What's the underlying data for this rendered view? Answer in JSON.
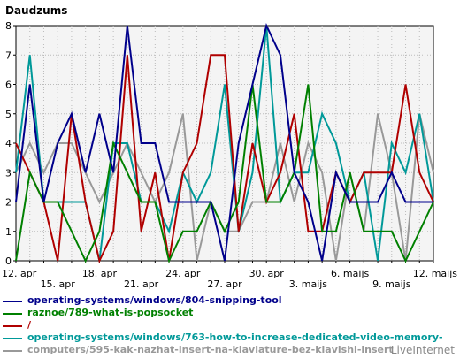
{
  "watermark": "LiveInternet",
  "chart_data": {
    "type": "line",
    "title": "Daudzums",
    "grid": true,
    "ylim": [
      0,
      8
    ],
    "yticks": [
      "0",
      "1",
      "2",
      "3",
      "4",
      "5",
      "6",
      "7",
      "8"
    ],
    "x_labels_top_row": [
      {
        "index": 0,
        "label": "12. apr"
      },
      {
        "index": 6,
        "label": "18. apr"
      },
      {
        "index": 12,
        "label": "24. apr"
      },
      {
        "index": 18,
        "label": "30. apr"
      },
      {
        "index": 24,
        "label": "6. maijs"
      },
      {
        "index": 30,
        "label": "12. maijs"
      }
    ],
    "x_labels_bottom_row": [
      {
        "index": 3,
        "label": "15. apr"
      },
      {
        "index": 9,
        "label": "21. apr"
      },
      {
        "index": 15,
        "label": "27. apr"
      },
      {
        "index": 21,
        "label": "3. maijs"
      },
      {
        "index": 27,
        "label": "9. maijs"
      }
    ],
    "x": [
      "12. apr",
      "13. apr",
      "14. apr",
      "15. apr",
      "16. apr",
      "17. apr",
      "18. apr",
      "19. apr",
      "20. apr",
      "21. apr",
      "22. apr",
      "23. apr",
      "24. apr",
      "25. apr",
      "26. apr",
      "27. apr",
      "28. apr",
      "29. apr",
      "30. apr",
      "1. maijs",
      "2. maijs",
      "3. maijs",
      "4. maijs",
      "5. maijs",
      "6. maijs",
      "7. maijs",
      "8. maijs",
      "9. maijs",
      "10. maijs",
      "11. maijs",
      "12. maijs"
    ],
    "series": [
      {
        "name": "operating-systems/windows/804-snipping-tool",
        "color": "#00008b",
        "values": [
          2,
          6,
          2,
          4,
          5,
          3,
          5,
          3,
          8,
          4,
          4,
          2,
          2,
          2,
          2,
          0,
          4,
          6,
          8,
          7,
          3,
          2,
          0,
          3,
          2,
          2,
          2,
          3,
          2,
          2,
          2
        ]
      },
      {
        "name": "raznoe/789-what-is-popsocket",
        "color": "#008000",
        "values": [
          0,
          3,
          2,
          2,
          1,
          0,
          1,
          4,
          3,
          2,
          2,
          0,
          1,
          1,
          2,
          1,
          2,
          6,
          2,
          2,
          3,
          6,
          1,
          1,
          3,
          1,
          1,
          1,
          0,
          1,
          2
        ]
      },
      {
        "name": "/",
        "color": "#b00000",
        "values": [
          4,
          3,
          2,
          0,
          5,
          2,
          0,
          1,
          7,
          1,
          3,
          0,
          3,
          4,
          7,
          7,
          1,
          4,
          2,
          3,
          5,
          1,
          1,
          3,
          2,
          3,
          3,
          3,
          6,
          3,
          2
        ]
      },
      {
        "name": "operating-systems/windows/763-how-to-increase-dedicated-video-memory-",
        "color": "#009999",
        "values": [
          3,
          7,
          2,
          2,
          2,
          2,
          0,
          4,
          4,
          2,
          2,
          1,
          3,
          2,
          3,
          6,
          1,
          3,
          8,
          2,
          3,
          3,
          5,
          4,
          2,
          3,
          0,
          4,
          3,
          5,
          2
        ]
      },
      {
        "name": "computers/595-kak-nazhat-insert-na-klaviature-bez-klavishi-insert",
        "color": "#999999",
        "values": [
          3,
          4,
          3,
          4,
          4,
          3,
          2,
          3,
          4,
          3,
          2,
          3,
          5,
          0,
          2,
          1,
          1,
          2,
          2,
          4,
          2,
          4,
          3,
          0,
          3,
          1,
          5,
          3,
          0,
          5,
          3
        ]
      }
    ]
  }
}
